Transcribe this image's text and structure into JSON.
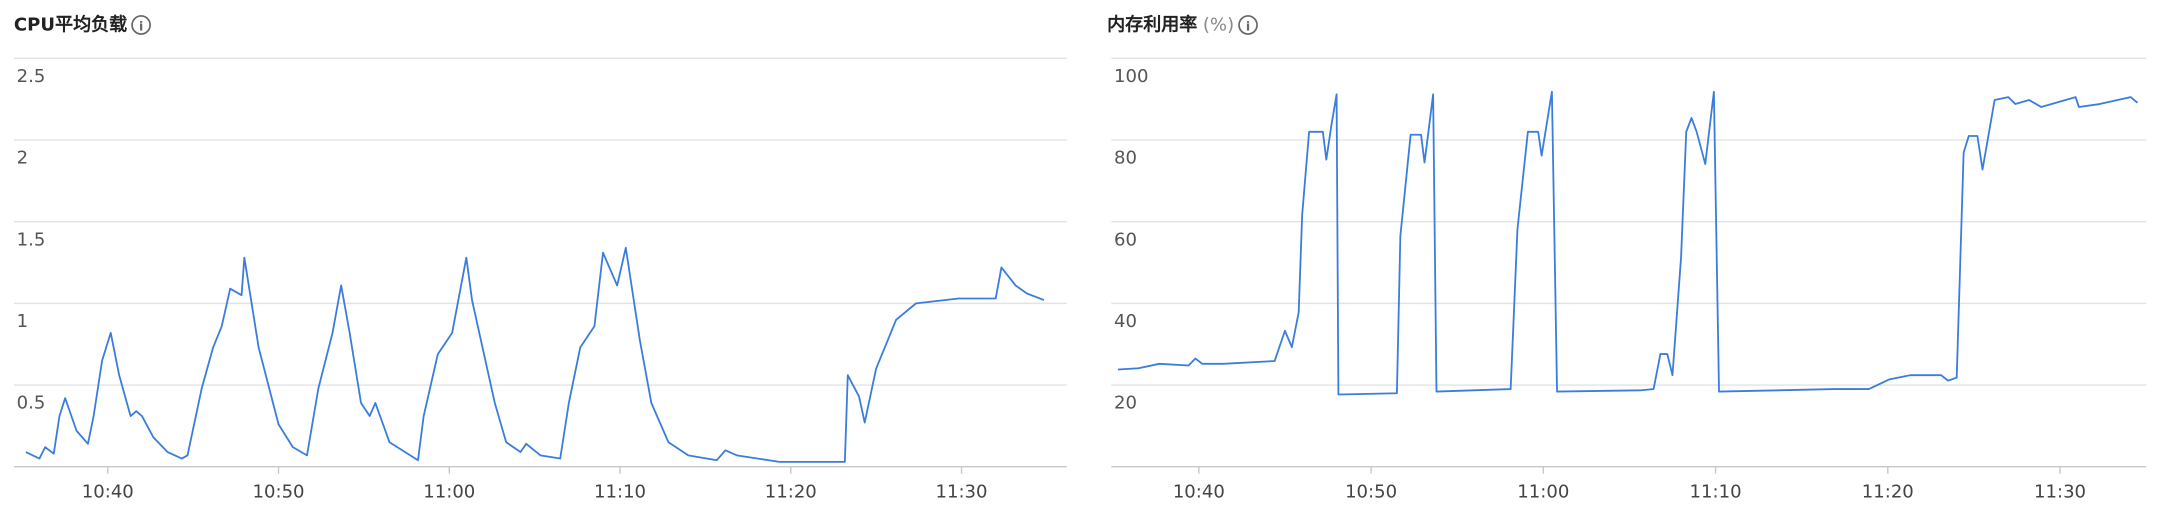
{
  "chart_data": [
    {
      "type": "line",
      "title": "CPU平均负载",
      "color": "#3b7ddd",
      "grid": true,
      "xlim": [
        "10:34:30",
        "11:36:10"
      ],
      "ylim": [
        0,
        2.5
      ],
      "yticks": [
        0.5,
        1,
        1.5,
        2,
        2.5
      ],
      "xticks": [
        "10:40",
        "10:50",
        "11:00",
        "11:10",
        "11:20",
        "11:30"
      ],
      "x": [
        "10:35:12",
        "10:36:00",
        "10:36:20",
        "10:36:50",
        "10:37:10",
        "10:37:30",
        "10:38:10",
        "10:38:50",
        "10:39:10",
        "10:39:40",
        "10:40:10",
        "10:40:40",
        "10:41:20",
        "10:41:40",
        "10:42:00",
        "10:42:40",
        "10:43:30",
        "10:44:20",
        "10:44:40",
        "10:45:30",
        "10:46:10",
        "10:46:40",
        "10:47:10",
        "10:47:50",
        "10:48:00",
        "10:48:50",
        "10:50:00",
        "10:50:50",
        "10:51:40",
        "10:52:20",
        "10:53:10",
        "10:53:40",
        "10:54:10",
        "10:54:50",
        "10:55:20",
        "10:55:40",
        "10:56:30",
        "10:58:10",
        "10:58:30",
        "10:59:20",
        "11:00:10",
        "11:01:00",
        "11:01:20",
        "11:02:40",
        "11:03:20",
        "11:04:10",
        "11:04:30",
        "11:05:20",
        "11:06:30",
        "11:07:00",
        "11:07:40",
        "11:08:30",
        "11:09:00",
        "11:09:50",
        "11:10:20",
        "11:11:10",
        "11:11:50",
        "11:12:50",
        "11:14:00",
        "11:15:40",
        "11:16:10",
        "11:16:50",
        "11:19:20",
        "11:23:10",
        "11:23:20",
        "11:24:00",
        "11:24:20",
        "11:25:00",
        "11:26:10",
        "11:27:20",
        "11:29:50",
        "11:32:00",
        "11:32:20",
        "11:33:10",
        "11:33:50",
        "11:34:50"
      ],
      "values": [
        0.09,
        0.05,
        0.12,
        0.08,
        0.31,
        0.42,
        0.22,
        0.14,
        0.31,
        0.65,
        0.82,
        0.56,
        0.31,
        0.34,
        0.31,
        0.18,
        0.09,
        0.05,
        0.07,
        0.48,
        0.73,
        0.86,
        1.09,
        1.05,
        1.28,
        0.73,
        0.26,
        0.12,
        0.07,
        0.48,
        0.82,
        1.11,
        0.82,
        0.39,
        0.31,
        0.39,
        0.15,
        0.04,
        0.31,
        0.69,
        0.82,
        1.28,
        1.02,
        0.39,
        0.15,
        0.09,
        0.14,
        0.07,
        0.05,
        0.39,
        0.73,
        0.86,
        1.31,
        1.11,
        1.34,
        0.77,
        0.39,
        0.15,
        0.07,
        0.04,
        0.1,
        0.07,
        0.03,
        0.03,
        0.56,
        0.43,
        0.27,
        0.6,
        0.9,
        1.0,
        1.03,
        1.03,
        1.22,
        1.11,
        1.06,
        1.02
      ]
    },
    {
      "type": "line",
      "title": "内存利用率",
      "unit": "(%)",
      "color": "#3b7ddd",
      "grid": true,
      "xlim": [
        "10:34:55",
        "11:35:00"
      ],
      "ylim": [
        0,
        100
      ],
      "yticks": [
        20,
        40,
        60,
        80,
        100
      ],
      "xticks": [
        "10:40",
        "10:50",
        "11:00",
        "11:10",
        "11:20",
        "11:30"
      ],
      "x": [
        "10:35:18",
        "10:36:30",
        "10:37:42",
        "10:39:24",
        "10:39:48",
        "10:40:12",
        "10:41:24",
        "10:44:24",
        "10:45:00",
        "10:45:24",
        "10:45:48",
        "10:46:00",
        "10:46:24",
        "10:47:12",
        "10:47:24",
        "10:47:42",
        "10:48:00",
        "10:48:06",
        "10:51:30",
        "10:51:42",
        "10:52:18",
        "10:52:54",
        "10:53:06",
        "10:53:36",
        "10:53:48",
        "10:58:06",
        "10:58:30",
        "10:59:06",
        "10:59:42",
        "10:59:54",
        "11:00:30",
        "11:00:48",
        "11:05:36",
        "11:06:24",
        "11:06:48",
        "11:07:12",
        "11:07:30",
        "11:08:00",
        "11:08:18",
        "11:08:36",
        "11:08:54",
        "11:09:24",
        "11:09:54",
        "11:10:12",
        "11:16:54",
        "11:18:54",
        "11:20:06",
        "11:21:18",
        "11:23:06",
        "11:23:30",
        "11:24:00",
        "11:24:24",
        "11:24:42",
        "11:25:12",
        "11:25:30",
        "11:26:12",
        "11:27:00",
        "11:27:24",
        "11:28:12",
        "11:28:54",
        "11:30:54",
        "11:31:06",
        "11:32:18",
        "11:34:06",
        "11:34:30"
      ],
      "values": [
        23.8,
        24.1,
        25.2,
        24.8,
        26.5,
        25.2,
        25.2,
        25.9,
        33.3,
        29.3,
        37.8,
        61.6,
        82.0,
        82.0,
        75.2,
        83.7,
        91.2,
        17.7,
        18.0,
        56.5,
        81.3,
        81.3,
        74.5,
        91.2,
        18.4,
        19.0,
        58.2,
        82.0,
        82.0,
        76.2,
        91.8,
        18.4,
        18.7,
        19.0,
        27.6,
        27.6,
        22.4,
        51.4,
        82.0,
        85.4,
        82.0,
        74.1,
        91.8,
        18.4,
        19.0,
        19.0,
        21.4,
        22.4,
        22.4,
        21.1,
        21.8,
        76.9,
        81.0,
        81.0,
        72.8,
        89.8,
        90.5,
        88.8,
        89.8,
        88.1,
        90.5,
        88.1,
        88.8,
        90.5,
        89.1
      ]
    }
  ]
}
